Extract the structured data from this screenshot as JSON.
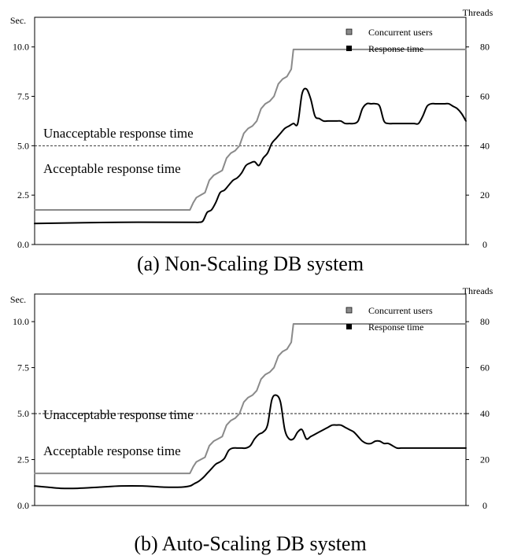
{
  "colors": {
    "concurrent_users": "#8a8a8a",
    "response_time": "#000000",
    "threshold": "#000000",
    "frame": "#000000"
  },
  "chart_data": [
    {
      "type": "line",
      "caption": "(a) Non-Scaling DB system",
      "left_axis_label": "Sec.",
      "right_axis_label": "Threads",
      "left_ticks": [
        "0.0",
        "2.5",
        "5.0",
        "7.5",
        "10.0"
      ],
      "right_ticks": [
        "0",
        "20",
        "40",
        "60",
        "80"
      ],
      "ylim_left": [
        0,
        11.5
      ],
      "ylim_right": [
        0,
        92
      ],
      "xlim": [
        0,
        100
      ],
      "grid": false,
      "legend_position": "top-right",
      "legend": [
        "Concurrent users",
        "Response time"
      ],
      "threshold": 5.0,
      "threshold_labels": {
        "above": "Unacceptable response time",
        "below": "Acceptable response time"
      },
      "series": [
        {
          "name": "Concurrent users",
          "axis": "right",
          "x": [
            0,
            36,
            36.8,
            37.5,
            38.5,
            39.5,
            40.5,
            41.5,
            42.5,
            43.5,
            44.5,
            45.5,
            46.5,
            47.5,
            48.5,
            49.5,
            50.5,
            51.5,
            52.5,
            53.5,
            54.5,
            55.5,
            56.5,
            57.5,
            58.5,
            59.5,
            60,
            100
          ],
          "values": [
            14,
            14,
            17,
            19,
            20,
            21,
            26,
            28,
            29,
            30,
            35,
            37,
            38,
            40,
            45,
            47,
            48,
            50,
            55,
            57,
            58,
            60,
            65,
            67,
            68,
            71,
            79,
            79
          ]
        },
        {
          "name": "Response time",
          "axis": "right",
          "x": [
            0,
            20,
            36,
            37,
            38,
            39,
            40,
            41,
            42,
            43,
            44,
            45,
            46,
            47,
            48,
            49,
            50,
            51,
            52,
            53,
            54,
            55,
            56,
            57,
            58,
            59,
            60,
            61,
            62,
            63,
            64,
            65,
            66,
            67,
            68,
            69,
            70,
            71,
            72,
            73,
            74,
            75,
            76,
            77,
            78,
            79,
            80,
            81,
            82,
            83,
            84,
            85,
            86,
            87,
            88,
            89,
            90,
            91,
            92,
            93,
            94,
            95,
            96,
            97,
            98,
            99,
            100
          ],
          "values": [
            8.5,
            9,
            9,
            9,
            9,
            9.5,
            13,
            14,
            17,
            21,
            22,
            24,
            26,
            27,
            29,
            32,
            33,
            33.5,
            32,
            35,
            37,
            41,
            43,
            45,
            47,
            48,
            49,
            49,
            61,
            63,
            59,
            52,
            51,
            50,
            50,
            50,
            50,
            50,
            49,
            49,
            49,
            50,
            55,
            57,
            57,
            57,
            56,
            50,
            49,
            49,
            49,
            49,
            49,
            49,
            49,
            49,
            52,
            56,
            57,
            57,
            57,
            57,
            57,
            56,
            55,
            53,
            50
          ]
        }
      ]
    },
    {
      "type": "line",
      "caption": "(b) Auto-Scaling DB system",
      "left_axis_label": "Sec.",
      "right_axis_label": "Threads",
      "left_ticks": [
        "0.0",
        "2.5",
        "5.0",
        "7.5",
        "10.0"
      ],
      "right_ticks": [
        "0",
        "20",
        "40",
        "60",
        "80"
      ],
      "ylim_left": [
        0,
        11.5
      ],
      "ylim_right": [
        0,
        92
      ],
      "xlim": [
        0,
        100
      ],
      "grid": false,
      "legend_position": "top-right",
      "legend": [
        "Concurrent users",
        "Response time"
      ],
      "threshold": 5.0,
      "threshold_labels": {
        "above": "Unacceptable response time",
        "below": "Acceptable response time"
      },
      "series": [
        {
          "name": "Concurrent users",
          "axis": "right",
          "x": [
            0,
            36,
            36.8,
            37.5,
            38.5,
            39.5,
            40.5,
            41.5,
            42.5,
            43.5,
            44.5,
            45.5,
            46.5,
            47.5,
            48.5,
            49.5,
            50.5,
            51.5,
            52.5,
            53.5,
            54.5,
            55.5,
            56.5,
            57.5,
            58.5,
            59.5,
            60,
            100
          ],
          "values": [
            14,
            14,
            17,
            19,
            20,
            21,
            26,
            28,
            29,
            30,
            35,
            37,
            38,
            40,
            45,
            47,
            48,
            50,
            55,
            57,
            58,
            60,
            65,
            67,
            68,
            71,
            79,
            79
          ]
        },
        {
          "name": "Response time",
          "axis": "right",
          "x": [
            0,
            3,
            6,
            10,
            15,
            20,
            25,
            30,
            34,
            36,
            37,
            38,
            39,
            40,
            41,
            42,
            43,
            44,
            45,
            46,
            47,
            48,
            49,
            50,
            51,
            52,
            53,
            54,
            55,
            56,
            57,
            58,
            59,
            60,
            61,
            62,
            63,
            64,
            65,
            66,
            67,
            68,
            69,
            70,
            71,
            72,
            73,
            74,
            75,
            76,
            77,
            78,
            79,
            80,
            81,
            82,
            83,
            84,
            85,
            86,
            87,
            88,
            89,
            90,
            91,
            92,
            93,
            94,
            95,
            96,
            97,
            98,
            99,
            100
          ],
          "values": [
            8.5,
            8,
            7.5,
            7.5,
            8,
            8.5,
            8.5,
            8,
            8,
            8.5,
            9.5,
            10.5,
            12,
            14,
            16,
            18,
            19,
            20.5,
            24,
            25,
            25,
            25,
            25,
            26,
            29,
            31,
            32,
            35,
            46,
            48,
            45,
            33,
            29,
            29,
            32,
            33,
            29,
            30,
            31,
            32,
            33,
            34,
            35,
            35,
            35,
            34,
            33,
            32,
            30,
            28,
            27,
            27,
            28,
            28,
            27,
            27,
            26,
            25,
            25,
            25,
            25,
            25,
            25,
            25,
            25,
            25,
            25,
            25,
            25,
            25,
            25,
            25,
            25,
            25
          ]
        }
      ]
    }
  ]
}
